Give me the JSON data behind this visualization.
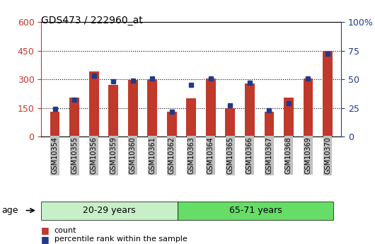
{
  "title": "GDS473 / 222960_at",
  "samples": [
    "GSM10354",
    "GSM10355",
    "GSM10356",
    "GSM10359",
    "GSM10360",
    "GSM10361",
    "GSM10362",
    "GSM10363",
    "GSM10364",
    "GSM10365",
    "GSM10366",
    "GSM10367",
    "GSM10368",
    "GSM10369",
    "GSM10370"
  ],
  "counts": [
    130,
    205,
    340,
    270,
    295,
    300,
    130,
    200,
    305,
    150,
    280,
    130,
    205,
    305,
    450
  ],
  "percentiles": [
    24,
    32,
    53,
    48,
    49,
    51,
    22,
    45,
    51,
    27,
    47,
    23,
    29,
    51,
    72
  ],
  "group1_label": "20-29 years",
  "group2_label": "65-71 years",
  "group1_count": 7,
  "group2_count": 8,
  "ylim_left": [
    0,
    600
  ],
  "ylim_right": [
    0,
    100
  ],
  "yticks_left": [
    0,
    150,
    300,
    450,
    600
  ],
  "yticks_right": [
    0,
    25,
    50,
    75,
    100
  ],
  "bar_color": "#C0392B",
  "marker_color": "#1F3A8A",
  "bg_color_group1": "#C8F0C8",
  "bg_color_group2": "#66DD66",
  "tick_label_bg": "#C0C0C0",
  "legend_label1": "count",
  "legend_label2": "percentile rank within the sample"
}
